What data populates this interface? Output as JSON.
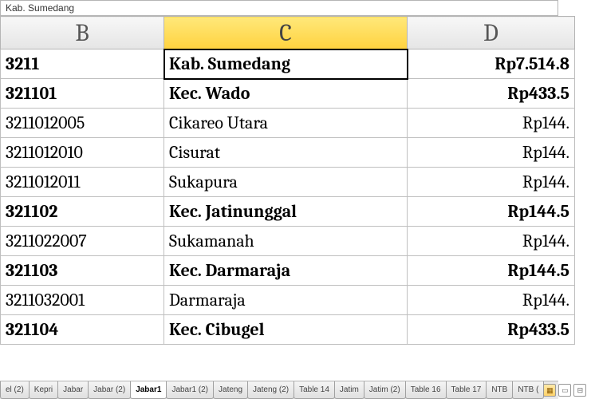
{
  "formula_bar": {
    "value": "Kab.  Sumedang"
  },
  "columns": {
    "headers": [
      "B",
      "C",
      "D"
    ],
    "widths": [
      205,
      305,
      210
    ],
    "selected_index": 1
  },
  "selected_cell": {
    "row": 0,
    "col": 1
  },
  "rows": [
    {
      "bold": true,
      "b": "3211",
      "c": "Kab.  Sumedang",
      "d": "Rp7.514.8"
    },
    {
      "bold": true,
      "b": "321101",
      "c": "Kec.  Wado",
      "d": "Rp433.5"
    },
    {
      "bold": false,
      "b": "3211012005",
      "c": "Cikareo Utara",
      "d": "Rp144."
    },
    {
      "bold": false,
      "b": "3211012010",
      "c": "Cisurat",
      "d": "Rp144."
    },
    {
      "bold": false,
      "b": "3211012011",
      "c": "Sukapura",
      "d": "Rp144."
    },
    {
      "bold": true,
      "b": "321102",
      "c": "Kec.  Jatinunggal",
      "d": "Rp144.5"
    },
    {
      "bold": false,
      "b": "3211022007",
      "c": "Sukamanah",
      "d": "Rp144."
    },
    {
      "bold": true,
      "b": "321103",
      "c": "Kec.  Darmaraja",
      "d": "Rp144.5"
    },
    {
      "bold": false,
      "b": "3211032001",
      "c": "Darmaraja",
      "d": "Rp144."
    },
    {
      "bold": true,
      "b": "321104",
      "c": "Kec.  Cibugel",
      "d": "Rp433.5"
    }
  ],
  "tabs": {
    "items": [
      "el (2)",
      "Kepri",
      "Jabar",
      "Jabar (2)",
      "Jabar1",
      "Jabar1 (2)",
      "Jateng",
      "Jateng (2)",
      "Table 14",
      "Jatim",
      "Jatim (2)",
      "Table 16",
      "Table 17",
      "NTB",
      "NTB ("
    ],
    "active_index": 4
  },
  "colors": {
    "selected_cell_border": "#000000",
    "selected_header_bg": "#ffd23f"
  }
}
